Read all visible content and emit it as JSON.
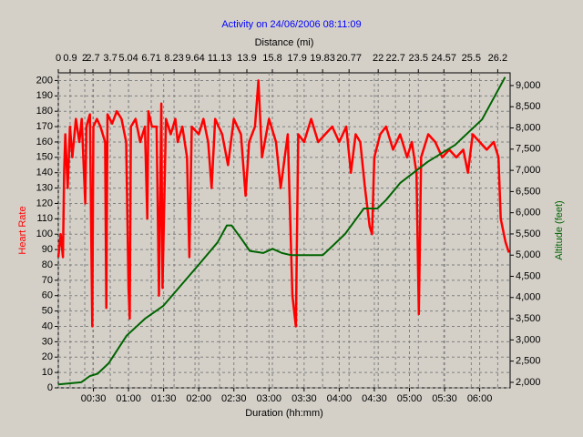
{
  "chart_data": {
    "type": "line",
    "title": "Activity on 24/06/2006 08:11:09",
    "xlabel": "Duration (hh:mm)",
    "x2label": "Distance (mi)",
    "ylabel": "Heart Rate",
    "y2label": "Altitude (feet)",
    "xlim": [
      0,
      386
    ],
    "xticks": [
      {
        "value": 30,
        "label": "00:30"
      },
      {
        "value": 60,
        "label": "01:00"
      },
      {
        "value": 90,
        "label": "01:30"
      },
      {
        "value": 120,
        "label": "02:00"
      },
      {
        "value": 150,
        "label": "02:30"
      },
      {
        "value": 180,
        "label": "03:00"
      },
      {
        "value": 210,
        "label": "03:30"
      },
      {
        "value": 240,
        "label": "04:00"
      },
      {
        "value": 270,
        "label": "04:30"
      },
      {
        "value": 300,
        "label": "05:00"
      },
      {
        "value": 330,
        "label": "05:30"
      },
      {
        "value": 360,
        "label": "06:00"
      }
    ],
    "x2ticks": [
      0,
      0.9,
      2,
      2.7,
      3.7,
      5.04,
      6.71,
      8.23,
      9.64,
      11.13,
      13.9,
      15.8,
      17.9,
      19.83,
      20.77,
      22,
      22.7,
      23.5,
      24.57,
      25.5,
      26.2
    ],
    "x2tick_positions": [
      0,
      10.1,
      22.6,
      29.6,
      44.4,
      60,
      79.4,
      98.9,
      116.8,
      137.8,
      161.1,
      182.9,
      204,
      225.8,
      248.4,
      273.3,
      288.1,
      307.6,
      329.4,
      352.8,
      375.4
    ],
    "ylim": [
      0,
      205
    ],
    "yticks": [
      0,
      10,
      20,
      30,
      40,
      50,
      60,
      70,
      80,
      90,
      100,
      110,
      120,
      130,
      140,
      150,
      160,
      170,
      180,
      190,
      200
    ],
    "y2lim": [
      1870,
      9300
    ],
    "y2ticks": [
      {
        "value": 2000,
        "label": "2,000"
      },
      {
        "value": 2500,
        "label": "2,500"
      },
      {
        "value": 3000,
        "label": "3,000"
      },
      {
        "value": 3500,
        "label": "3,500"
      },
      {
        "value": 4000,
        "label": "4,000"
      },
      {
        "value": 4500,
        "label": "4,500"
      },
      {
        "value": 5000,
        "label": "5,000"
      },
      {
        "value": 5500,
        "label": "5,500"
      },
      {
        "value": 6000,
        "label": "6,000"
      },
      {
        "value": 6500,
        "label": "6,500"
      },
      {
        "value": 7000,
        "label": "7,000"
      },
      {
        "value": 7500,
        "label": "7,500"
      },
      {
        "value": 8000,
        "label": "8,000"
      },
      {
        "value": 8500,
        "label": "8,500"
      },
      {
        "value": 9000,
        "label": "9,000"
      }
    ],
    "grid": true,
    "series": [
      {
        "name": "Heart Rate",
        "color": "#ff0000",
        "x": [
          0,
          2,
          4,
          5,
          6,
          8,
          10,
          12,
          15,
          18,
          20,
          23,
          24,
          27,
          29,
          30,
          33,
          36,
          40,
          41,
          42,
          46,
          50,
          54,
          58,
          60,
          61,
          62,
          66,
          70,
          74,
          76,
          77,
          80,
          84,
          86,
          88,
          89,
          92,
          96,
          100,
          102,
          106,
          110,
          112,
          114,
          120,
          124,
          128,
          131,
          134,
          140,
          145,
          150,
          156,
          160,
          163,
          168,
          171,
          174,
          180,
          186,
          190,
          196,
          200,
          203,
          205,
          210,
          216,
          222,
          228,
          234,
          240,
          246,
          250,
          254,
          258,
          262,
          266,
          268,
          270,
          275,
          280,
          286,
          292,
          298,
          302,
          306,
          308,
          310,
          316,
          322,
          328,
          334,
          340,
          346,
          350,
          354,
          360,
          366,
          372,
          376,
          378,
          382,
          385
        ],
        "values": [
          85,
          100,
          85,
          140,
          165,
          130,
          170,
          150,
          175,
          160,
          175,
          120,
          170,
          178,
          40,
          170,
          175,
          170,
          160,
          52,
          178,
          172,
          180,
          175,
          160,
          65,
          45,
          170,
          175,
          160,
          170,
          110,
          180,
          170,
          170,
          60,
          185,
          65,
          175,
          165,
          175,
          160,
          170,
          150,
          85,
          170,
          165,
          175,
          160,
          130,
          175,
          165,
          145,
          175,
          165,
          125,
          160,
          170,
          200,
          150,
          175,
          160,
          130,
          165,
          60,
          40,
          165,
          160,
          175,
          160,
          165,
          170,
          160,
          170,
          140,
          165,
          160,
          130,
          105,
          100,
          150,
          165,
          170,
          155,
          165,
          150,
          160,
          140,
          48,
          150,
          165,
          160,
          150,
          155,
          150,
          155,
          140,
          165,
          160,
          155,
          160,
          150,
          110,
          95,
          88
        ]
      },
      {
        "name": "Altitude",
        "color": "#006400",
        "axis": "y2",
        "x": [
          0,
          19.5,
          27,
          33.5,
          43,
          58.4,
          74,
          89.6,
          120.7,
          136,
          144,
          148,
          156,
          163.6,
          175,
          183,
          191,
          198.6,
          218,
          226,
          233.7,
          245,
          261,
          272.6,
          280,
          292,
          315.5,
          339,
          362,
          381.7
        ],
        "values": [
          1950,
          2000,
          2150,
          2200,
          2450,
          3100,
          3500,
          3800,
          4800,
          5300,
          5700,
          5700,
          5400,
          5100,
          5050,
          5150,
          5050,
          5000,
          5000,
          5000,
          5200,
          5500,
          6100,
          6100,
          6300,
          6700,
          7200,
          7600,
          8200,
          9200
        ]
      }
    ]
  }
}
